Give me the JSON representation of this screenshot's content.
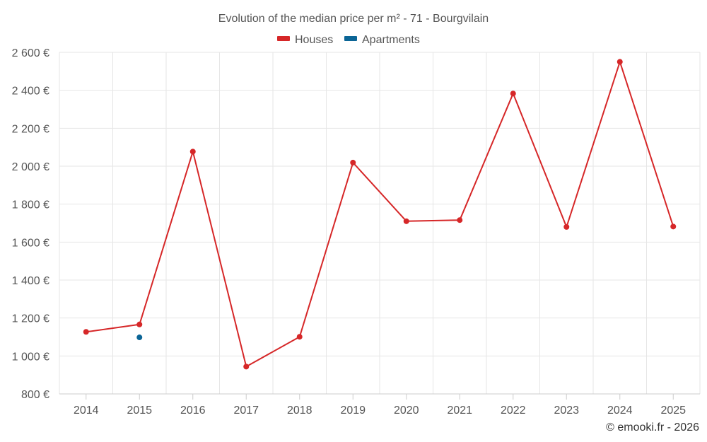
{
  "chart_data": {
    "type": "line",
    "title": "Evolution of the median price per m² - 71 - Bourgvilain",
    "x": [
      "2014",
      "2015",
      "2016",
      "2017",
      "2018",
      "2019",
      "2020",
      "2021",
      "2022",
      "2023",
      "2024",
      "2025"
    ],
    "series": [
      {
        "name": "Houses",
        "color": "#d62728",
        "values": [
          1127,
          1166,
          2077,
          944,
          1101,
          2019,
          1710,
          1716,
          2383,
          1680,
          2550,
          1682
        ]
      },
      {
        "name": "Apartments",
        "color": "#0b6596",
        "values": [
          null,
          1098,
          null,
          null,
          null,
          null,
          null,
          null,
          null,
          null,
          null,
          null
        ]
      }
    ],
    "ylim": [
      800,
      2600
    ],
    "yticks": [
      800,
      1000,
      1200,
      1400,
      1600,
      1800,
      2000,
      2200,
      2400,
      2600
    ],
    "ytick_labels": [
      "800 €",
      "1 000 €",
      "1 200 €",
      "1 400 €",
      "1 600 €",
      "1 800 €",
      "2 000 €",
      "2 200 €",
      "2 400 €",
      "2 600 €"
    ],
    "xlabel": "",
    "ylabel": "",
    "legend": "top-center",
    "grid": true
  },
  "credit": "© emooki.fr - 2026"
}
